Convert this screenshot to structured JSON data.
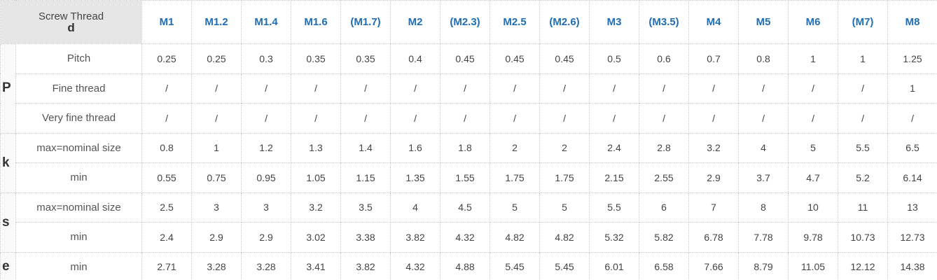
{
  "header": {
    "title": "Screw Thread",
    "symbol": "d",
    "columns": [
      "M1",
      "M1.2",
      "M1.4",
      "M1.6",
      "(M1.7)",
      "M2",
      "(M2.3)",
      "M2.5",
      "(M2.6)",
      "M3",
      "(M3.5)",
      "M4",
      "M5",
      "M6",
      "(M7)",
      "M8"
    ]
  },
  "groups": [
    {
      "symbol": "P",
      "rows": [
        {
          "label": "Pitch",
          "values": [
            "0.25",
            "0.25",
            "0.3",
            "0.35",
            "0.35",
            "0.4",
            "0.45",
            "0.45",
            "0.45",
            "0.5",
            "0.6",
            "0.7",
            "0.8",
            "1",
            "1",
            "1.25"
          ]
        },
        {
          "label": "Fine thread",
          "values": [
            "/",
            "/",
            "/",
            "/",
            "/",
            "/",
            "/",
            "/",
            "/",
            "/",
            "/",
            "/",
            "/",
            "/",
            "/",
            "1"
          ]
        },
        {
          "label": "Very fine thread",
          "values": [
            "/",
            "/",
            "/",
            "/",
            "/",
            "/",
            "/",
            "/",
            "/",
            "/",
            "/",
            "/",
            "/",
            "/",
            "/",
            "/"
          ]
        }
      ]
    },
    {
      "symbol": "k",
      "rows": [
        {
          "label": "max=nominal size",
          "values": [
            "0.8",
            "1",
            "1.2",
            "1.3",
            "1.4",
            "1.6",
            "1.8",
            "2",
            "2",
            "2.4",
            "2.8",
            "3.2",
            "4",
            "5",
            "5.5",
            "6.5"
          ]
        },
        {
          "label": "min",
          "values": [
            "0.55",
            "0.75",
            "0.95",
            "1.05",
            "1.15",
            "1.35",
            "1.55",
            "1.75",
            "1.75",
            "2.15",
            "2.55",
            "2.9",
            "3.7",
            "4.7",
            "5.2",
            "6.14"
          ]
        }
      ]
    },
    {
      "symbol": "s",
      "rows": [
        {
          "label": "max=nominal size",
          "values": [
            "2.5",
            "3",
            "3",
            "3.2",
            "3.5",
            "4",
            "4.5",
            "5",
            "5",
            "5.5",
            "6",
            "7",
            "8",
            "10",
            "11",
            "13"
          ]
        },
        {
          "label": "min",
          "values": [
            "2.4",
            "2.9",
            "2.9",
            "3.02",
            "3.38",
            "3.82",
            "4.32",
            "4.82",
            "4.82",
            "5.32",
            "5.82",
            "6.78",
            "7.78",
            "9.78",
            "10.73",
            "12.73"
          ]
        }
      ]
    },
    {
      "symbol": "e",
      "rows": [
        {
          "label": "min",
          "values": [
            "2.71",
            "3.28",
            "3.28",
            "3.41",
            "3.82",
            "4.32",
            "4.88",
            "5.45",
            "5.45",
            "6.01",
            "6.58",
            "7.66",
            "8.79",
            "11.05",
            "12.12",
            "14.38"
          ]
        }
      ]
    }
  ]
}
